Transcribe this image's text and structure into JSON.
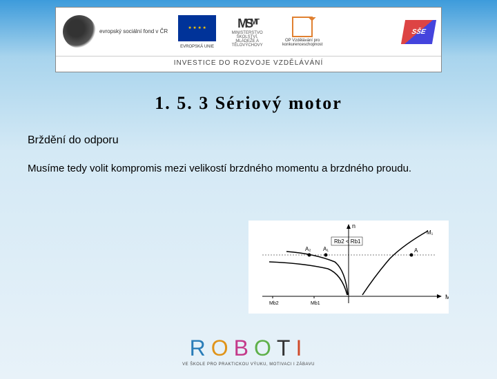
{
  "banner": {
    "esf_text": "evropský\nsociální\nfond v ČR",
    "eu_text": "EVROPSKÁ UNIE",
    "msmt_text": "MINISTERSTVO ŠKOLSTVÍ,\nMLÁDEŽE A TĚLOVÝCHOVY",
    "opvk_text": "OP Vzdělávání\npro konkurenceschopnost",
    "sse_text": "SŠE",
    "footer": "INVESTICE DO ROZVOJE VZDĚLÁVÁNÍ"
  },
  "title": "1. 5. 3 Sériový motor",
  "subtitle": "Brždění do odporu",
  "body": "Musíme tedy volit kompromis mezi velikostí brzdného momentu a brzdného proudu.",
  "chart": {
    "x_axis": "M",
    "y_axis": "n",
    "condition_label": "Rb2 < Rb1",
    "curve_labels": {
      "m1": "M₁",
      "mb1": "Mb1",
      "mb2": "Mb2"
    },
    "point_labels": [
      "A",
      "A₁",
      "A₂"
    ],
    "line_color": "#000000",
    "background": "#ffffff",
    "axis_color": "#000000"
  },
  "roboti": {
    "letters": [
      {
        "ch": "R",
        "color": "#2a7db8"
      },
      {
        "ch": "O",
        "color": "#e0941a"
      },
      {
        "ch": "B",
        "color": "#c43a8a"
      },
      {
        "ch": "O",
        "color": "#5fb04a"
      },
      {
        "ch": "T",
        "color": "#333333"
      },
      {
        "ch": "I",
        "color": "#d04a2a"
      }
    ],
    "sub": "VE ŠKOLE PRO PRAKTICKOU VÝUKU, MOTIVACI I ZÁBAVU"
  }
}
